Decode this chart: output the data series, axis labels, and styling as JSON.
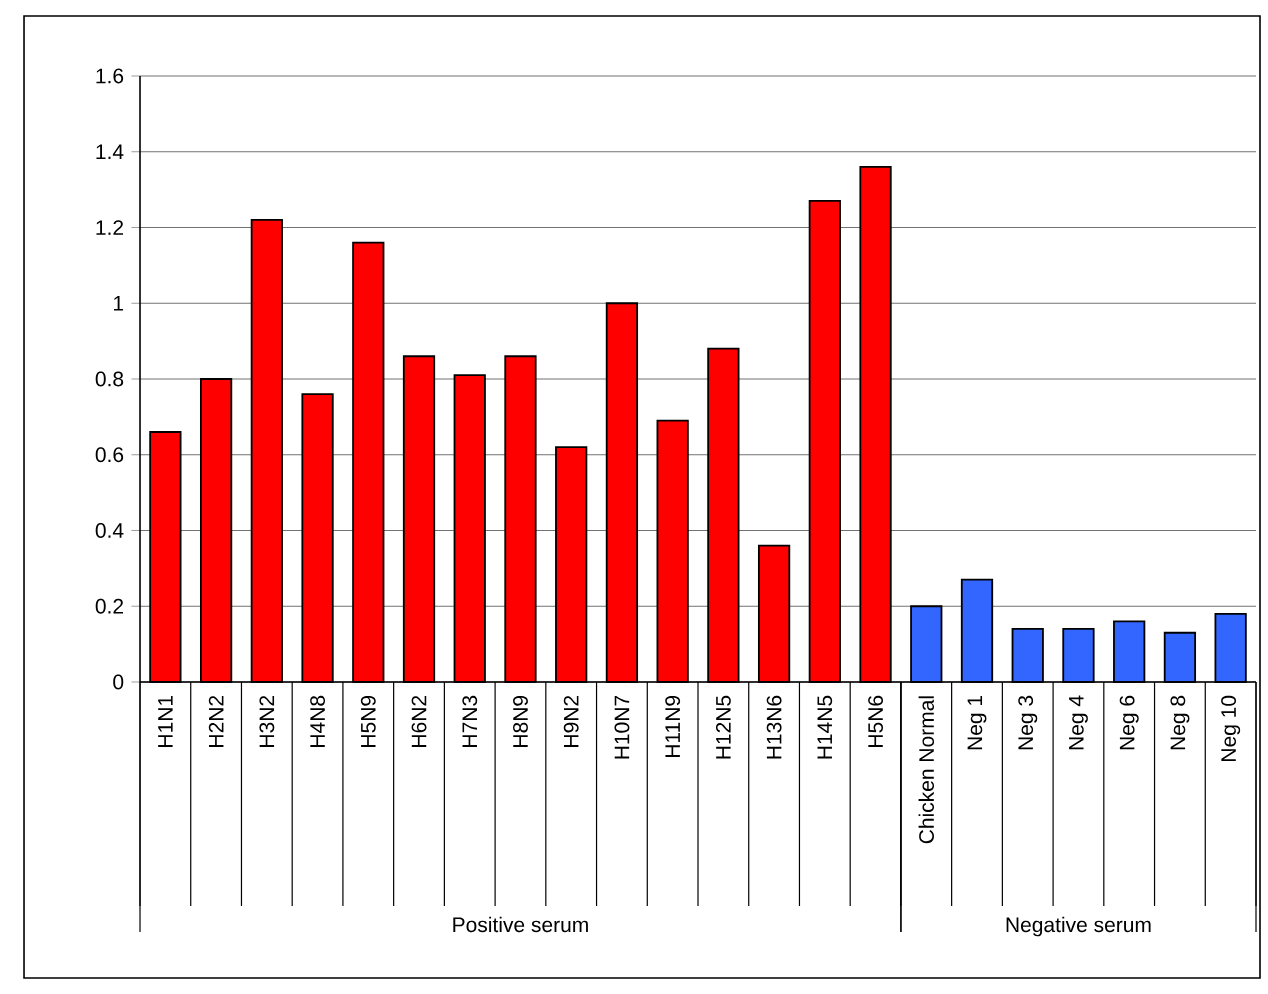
{
  "chart_data": {
    "type": "bar",
    "categories": [
      "H1N1",
      "H2N2",
      "H3N2",
      "H4N8",
      "H5N9",
      "H6N2",
      "H7N3",
      "H8N9",
      "H9N2",
      "H10N7",
      "H11N9",
      "H12N5",
      "H13N6",
      "H14N5",
      "H5N6",
      "Chicken Normal",
      "Neg 1",
      "Neg 3",
      "Neg 4",
      "Neg 6",
      "Neg 8",
      "Neg 10"
    ],
    "series": [
      {
        "color": "#ff0000",
        "values": [
          0.66,
          0.8,
          1.22,
          0.76,
          1.16,
          0.86,
          0.81,
          0.86,
          0.62,
          1.0,
          0.69,
          0.88,
          0.36,
          1.27,
          1.36,
          null,
          null,
          null,
          null,
          null,
          null,
          null
        ]
      },
      {
        "color": "#3366ff",
        "values": [
          null,
          null,
          null,
          null,
          null,
          null,
          null,
          null,
          null,
          null,
          null,
          null,
          null,
          null,
          null,
          0.2,
          0.27,
          0.14,
          0.14,
          0.16,
          0.13,
          0.18
        ]
      }
    ],
    "annotations": [
      "Positive serum",
      "Negative serum"
    ],
    "ylim": [
      0,
      1.6
    ],
    "yticks": [
      0,
      0.2,
      0.4,
      0.6,
      0.8,
      1,
      1.2,
      1.4,
      1.6
    ],
    "grid": "y"
  }
}
